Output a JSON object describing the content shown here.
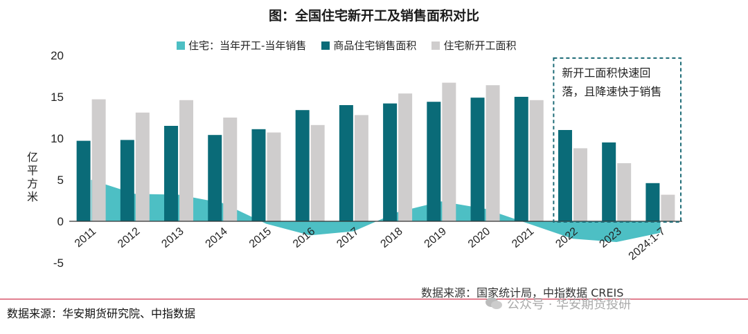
{
  "chart_data": {
    "type": "bar",
    "title": "图：全国住宅新开工及销售面积对比",
    "ylabel": "亿平方米",
    "ylim": [
      -5,
      20
    ],
    "yticks": [
      -5,
      0,
      5,
      10,
      15,
      20
    ],
    "categories": [
      "2011",
      "2012",
      "2013",
      "2014",
      "2015",
      "2016",
      "2017",
      "2018",
      "2019",
      "2020",
      "2021",
      "2022",
      "2023",
      "2024:1-7"
    ],
    "series": [
      {
        "name": "住宅：当年开工-当年销售",
        "kind": "area",
        "color": "#4dbfc4",
        "values": [
          5.0,
          3.3,
          3.2,
          2.2,
          -0.3,
          -1.7,
          -1.2,
          1.1,
          2.4,
          1.5,
          -0.3,
          -2.1,
          -2.5,
          -1.4
        ]
      },
      {
        "name": "商品住宅销售面积",
        "kind": "bar",
        "color": "#0a6b78",
        "values": [
          9.7,
          9.8,
          11.5,
          10.4,
          11.1,
          13.4,
          14.0,
          14.2,
          14.4,
          14.9,
          15.0,
          11.0,
          9.5,
          4.6
        ]
      },
      {
        "name": "住宅新开工面积",
        "kind": "bar",
        "color": "#cfcdcd",
        "values": [
          14.7,
          13.1,
          14.6,
          12.5,
          10.7,
          11.6,
          12.8,
          15.4,
          16.7,
          16.4,
          14.6,
          8.8,
          7.0,
          3.2
        ]
      }
    ],
    "annotation": {
      "lines": [
        "新开工面积快速回",
        "落，且降速快于销售"
      ]
    },
    "grid": false,
    "legend_position": "top"
  },
  "source_inner": "数据来源：国家统计局，中指数据 CREIS",
  "source_outer": "数据来源：华安期货研究院、中指数据",
  "watermark": "公众号 · 华安期货投研"
}
